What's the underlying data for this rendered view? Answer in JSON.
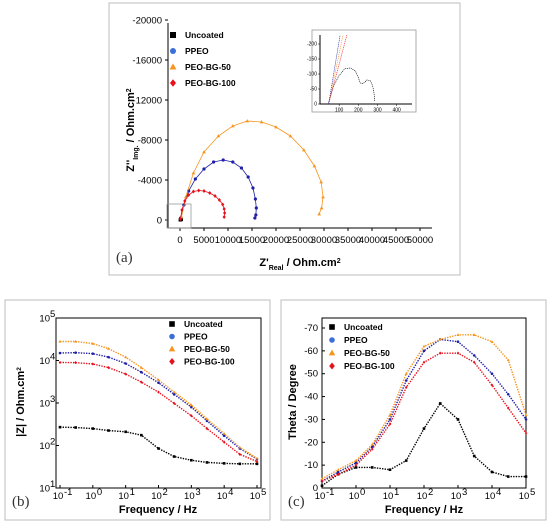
{
  "colors": {
    "uncoated": "#000000",
    "ppeo": "#1f1fa8",
    "ppeo_legend": "#3d6fd9",
    "peo_bg_50": "#f7941d",
    "peo_bg_100": "#e8101b"
  },
  "chart_data": [
    {
      "panel": "(a)",
      "type": "scatter",
      "xlabel": "Z'",
      "xlabel_sub": "Real",
      "xlabel_unit": " / Ohm.cm",
      "xlabel_sup": "2",
      "ylabel": "Z''",
      "ylabel_sub": "Img.",
      "ylabel_unit": " / Ohm.cm",
      "ylabel_sup": "2",
      "xlim": [
        0,
        50000
      ],
      "ylim": [
        0,
        -20000
      ],
      "xticks": [
        "0",
        "5000",
        "10000",
        "15000",
        "20000",
        "25000",
        "30000",
        "35000",
        "40000",
        "45000",
        "50000"
      ],
      "yticks": [
        "0",
        "-4000",
        "-8000",
        "-12000",
        "-16000",
        "-20000"
      ],
      "legend": [
        "Uncoated",
        "PPEO",
        "PEO-BG-50",
        "PEO-BG-100"
      ],
      "series": [
        {
          "name": "Uncoated",
          "marker": "square",
          "x": [
            40,
            120,
            200,
            300
          ],
          "y": [
            -5,
            -100,
            -150,
            -40
          ]
        },
        {
          "name": "PPEO",
          "marker": "circle",
          "x": [
            200,
            800,
            1800,
            3200,
            5000,
            7000,
            9000,
            11000,
            12800,
            14200,
            15200,
            15700,
            15900,
            15800,
            15600
          ],
          "y": [
            -200,
            -1500,
            -2900,
            -4100,
            -5100,
            -5800,
            -6000,
            -5800,
            -5200,
            -4300,
            -3200,
            -2100,
            -1200,
            -500,
            -200
          ]
        },
        {
          "name": "PEO-BG-50",
          "marker": "triangle",
          "x": [
            300,
            1200,
            2800,
            5000,
            8000,
            11000,
            14000,
            17000,
            20000,
            23000,
            25800,
            28000,
            29400,
            29800,
            29500,
            29000
          ],
          "y": [
            -300,
            -2300,
            -4700,
            -6800,
            -8400,
            -9400,
            -9900,
            -9800,
            -9300,
            -8400,
            -7000,
            -5400,
            -3800,
            -2300,
            -1200,
            -600
          ]
        },
        {
          "name": "PEO-BG-100",
          "marker": "diamond",
          "x": [
            100,
            400,
            1000,
            1800,
            2800,
            3900,
            5000,
            6200,
            7300,
            8200,
            8900,
            9200,
            9300,
            9200
          ],
          "y": [
            -100,
            -1000,
            -1900,
            -2500,
            -2850,
            -2950,
            -2900,
            -2700,
            -2400,
            -2000,
            -1550,
            -1100,
            -700,
            -300
          ]
        }
      ],
      "inset": {
        "xticks": [
          "100",
          "200",
          "300",
          "400"
        ],
        "yticks": [
          "0",
          "-50",
          "-100",
          "-150",
          "-200"
        ]
      }
    },
    {
      "panel": "(b)",
      "type": "line",
      "xlabel": "Frequency / Hz",
      "ylabel": "|Z| / Ohm.cm",
      "ylabel_sup": "2",
      "xscale": "log",
      "yscale": "log",
      "xlim": [
        0.1,
        100000
      ],
      "ylim": [
        10,
        100000
      ],
      "xticks": [
        "10",
        "10",
        "10",
        "10",
        "10",
        "10",
        "10"
      ],
      "xtick_exps": [
        "-1",
        "0",
        "1",
        "2",
        "3",
        "4",
        "5"
      ],
      "yticks": [
        "10",
        "10",
        "10",
        "10",
        "10"
      ],
      "ytick_exps": [
        "1",
        "2",
        "3",
        "4",
        "5"
      ],
      "legend": [
        "Uncoated",
        "PPEO",
        "PEO-BG-50",
        "PEO-BG-100"
      ],
      "series": [
        {
          "name": "Uncoated",
          "x": [
            0.1,
            0.3,
            1,
            3,
            10,
            30,
            100,
            300,
            1000,
            3000,
            10000,
            30000,
            100000
          ],
          "y": [
            270,
            265,
            250,
            225,
            210,
            175,
            85,
            55,
            45,
            40,
            38,
            37,
            37
          ]
        },
        {
          "name": "PPEO",
          "x": [
            0.1,
            0.3,
            1,
            3,
            10,
            30,
            100,
            300,
            1000,
            3000,
            10000,
            30000,
            100000
          ],
          "y": [
            15000,
            15300,
            14500,
            12000,
            8500,
            5300,
            3000,
            1600,
            800,
            380,
            170,
            85,
            48
          ]
        },
        {
          "name": "PEO-BG-50",
          "x": [
            0.1,
            0.3,
            1,
            3,
            10,
            30,
            100,
            300,
            1000,
            3000,
            10000,
            30000,
            100000
          ],
          "y": [
            28000,
            28000,
            25000,
            19000,
            12000,
            6800,
            3500,
            1800,
            900,
            420,
            190,
            90,
            50
          ]
        },
        {
          "name": "PEO-BG-100",
          "x": [
            0.1,
            0.3,
            1,
            3,
            10,
            30,
            100,
            300,
            1000,
            3000,
            10000,
            30000,
            100000
          ],
          "y": [
            9000,
            8900,
            8300,
            6800,
            4800,
            3100,
            1800,
            980,
            500,
            250,
            120,
            62,
            42
          ]
        }
      ]
    },
    {
      "panel": "(c)",
      "type": "line",
      "xlabel": "Frequency / Hz",
      "ylabel": "Theta / Degree",
      "xscale": "log",
      "xlim": [
        0.1,
        100000
      ],
      "ylim": [
        0,
        -70
      ],
      "xticks": [
        "10",
        "10",
        "10",
        "10",
        "10",
        "10",
        "10"
      ],
      "xtick_exps": [
        "-1",
        "0",
        "1",
        "2",
        "3",
        "4",
        "5"
      ],
      "yticks": [
        "0",
        "-10",
        "-20",
        "-30",
        "-40",
        "-50",
        "-60",
        "-70"
      ],
      "legend": [
        "Uncoated",
        "PPEO",
        "PEO-BG-50",
        "PEO-BG-100"
      ],
      "series": [
        {
          "name": "Uncoated",
          "x": [
            0.1,
            0.3,
            1,
            3,
            10,
            30,
            100,
            300,
            1000,
            3000,
            10000,
            30000,
            100000
          ],
          "y": [
            1,
            -6,
            -9,
            -9,
            -8,
            -12,
            -26,
            -37,
            -30,
            -14,
            -7,
            -5,
            -5
          ]
        },
        {
          "name": "PPEO",
          "x": [
            0.1,
            0.3,
            1,
            3,
            10,
            30,
            100,
            300,
            1000,
            3000,
            10000,
            30000,
            100000
          ],
          "y": [
            -3,
            -7,
            -11,
            -18,
            -30,
            -47,
            -60,
            -65,
            -64,
            -58,
            -50,
            -41,
            -30
          ]
        },
        {
          "name": "PEO-BG-50",
          "x": [
            0.1,
            0.3,
            1,
            3,
            10,
            30,
            100,
            300,
            1000,
            3000,
            10000,
            30000,
            100000
          ],
          "y": [
            -4,
            -8,
            -12,
            -19,
            -32,
            -50,
            -62,
            -65,
            -67,
            -67,
            -64,
            -56,
            -32
          ]
        },
        {
          "name": "PEO-BG-100",
          "x": [
            0.1,
            0.3,
            1,
            3,
            10,
            30,
            100,
            300,
            1000,
            3000,
            10000,
            30000,
            100000
          ],
          "y": [
            -3,
            -6,
            -10,
            -17,
            -28,
            -44,
            -55,
            -59,
            -59,
            -55,
            -45,
            -35,
            -24
          ]
        }
      ]
    }
  ]
}
